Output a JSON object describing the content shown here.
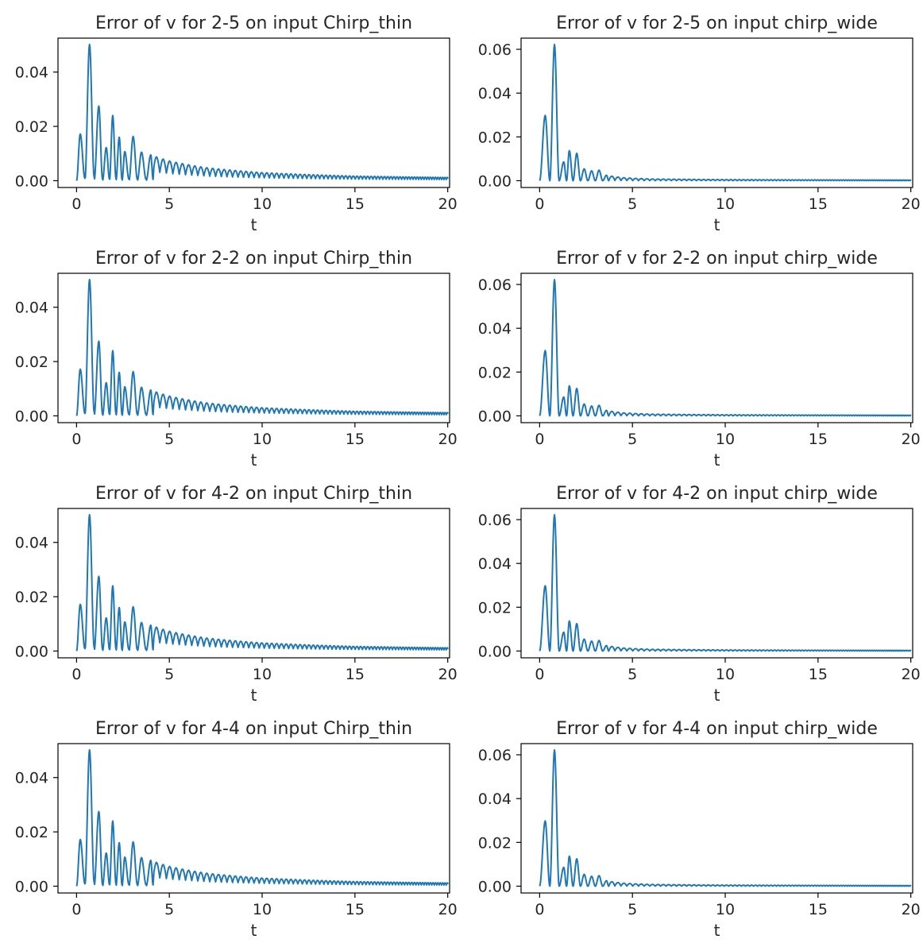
{
  "figure": {
    "line_color": "#1f77b4",
    "axis_color": "#000000",
    "text_color": "#262626",
    "background": "#ffffff"
  },
  "chart_data": [
    {
      "type": "line",
      "title": "Error of v for 2-5 on input Chirp_thin",
      "xlabel": "t",
      "ylabel": "",
      "xlim": [
        -1,
        20.1
      ],
      "ylim": [
        -0.0025,
        0.0525
      ],
      "xticks": [
        0,
        5,
        10,
        15,
        20
      ],
      "xtick_labels": [
        "0",
        "5",
        "10",
        "15",
        "20"
      ],
      "yticks": [
        0,
        0.02,
        0.04
      ],
      "ytick_labels": [
        "0.00",
        "0.02",
        "0.04"
      ],
      "grid": false,
      "signal": "thin",
      "peaks": [
        {
          "t": 0.2,
          "v": 0.0172
        },
        {
          "t": 0.7,
          "v": 0.0502
        },
        {
          "t": 1.2,
          "v": 0.0275
        },
        {
          "t": 1.6,
          "v": 0.0122
        },
        {
          "t": 1.95,
          "v": 0.024
        },
        {
          "t": 2.3,
          "v": 0.016
        },
        {
          "t": 2.6,
          "v": 0.0107
        },
        {
          "t": 3.05,
          "v": 0.0163
        },
        {
          "t": 3.5,
          "v": 0.0105
        },
        {
          "t": 4.0,
          "v": 0.0095
        },
        {
          "t": 5.0,
          "v": 0.0073
        },
        {
          "t": 7.0,
          "v": 0.0048
        },
        {
          "t": 10.0,
          "v": 0.003
        },
        {
          "t": 15.0,
          "v": 0.0017
        },
        {
          "t": 20.0,
          "v": 0.0012
        }
      ]
    },
    {
      "type": "line",
      "title": "Error of v for 2-5 on input chirp_wide",
      "xlabel": "t",
      "ylabel": "",
      "xlim": [
        -1,
        20.1
      ],
      "ylim": [
        -0.0031,
        0.0651
      ],
      "xticks": [
        0,
        5,
        10,
        15,
        20
      ],
      "xtick_labels": [
        "0",
        "5",
        "10",
        "15",
        "20"
      ],
      "yticks": [
        0,
        0.02,
        0.04,
        0.06
      ],
      "ytick_labels": [
        "0.00",
        "0.02",
        "0.04",
        "0.06"
      ],
      "grid": false,
      "signal": "wide",
      "peaks": [
        {
          "t": 0.3,
          "v": 0.0298
        },
        {
          "t": 0.8,
          "v": 0.0622
        },
        {
          "t": 1.3,
          "v": 0.0086
        },
        {
          "t": 1.6,
          "v": 0.0137
        },
        {
          "t": 2.0,
          "v": 0.0125
        },
        {
          "t": 2.4,
          "v": 0.0054
        },
        {
          "t": 2.8,
          "v": 0.0045
        },
        {
          "t": 3.2,
          "v": 0.0048
        },
        {
          "t": 3.6,
          "v": 0.0025
        },
        {
          "t": 4.5,
          "v": 0.0014
        },
        {
          "t": 6.0,
          "v": 0.0008
        },
        {
          "t": 10.0,
          "v": 0.0005
        },
        {
          "t": 20.0,
          "v": 0.0003
        }
      ]
    },
    {
      "type": "line",
      "title": "Error of v for 2-2 on input Chirp_thin",
      "xlabel": "t",
      "ylabel": "",
      "xlim": [
        -1,
        20.1
      ],
      "ylim": [
        -0.0025,
        0.0525
      ],
      "xticks": [
        0,
        5,
        10,
        15,
        20
      ],
      "xtick_labels": [
        "0",
        "5",
        "10",
        "15",
        "20"
      ],
      "yticks": [
        0,
        0.02,
        0.04
      ],
      "ytick_labels": [
        "0.00",
        "0.02",
        "0.04"
      ],
      "grid": false,
      "signal": "thin",
      "peaks": [
        {
          "t": 0.2,
          "v": 0.0172
        },
        {
          "t": 0.7,
          "v": 0.0502
        },
        {
          "t": 1.2,
          "v": 0.0275
        },
        {
          "t": 1.6,
          "v": 0.0122
        },
        {
          "t": 1.95,
          "v": 0.024
        },
        {
          "t": 2.3,
          "v": 0.016
        },
        {
          "t": 2.6,
          "v": 0.0107
        },
        {
          "t": 3.05,
          "v": 0.0163
        },
        {
          "t": 3.5,
          "v": 0.0105
        },
        {
          "t": 4.0,
          "v": 0.0095
        },
        {
          "t": 5.0,
          "v": 0.0073
        },
        {
          "t": 7.0,
          "v": 0.0048
        },
        {
          "t": 10.0,
          "v": 0.003
        },
        {
          "t": 15.0,
          "v": 0.0017
        },
        {
          "t": 20.0,
          "v": 0.0012
        }
      ]
    },
    {
      "type": "line",
      "title": "Error of v for 2-2 on input chirp_wide",
      "xlabel": "t",
      "ylabel": "",
      "xlim": [
        -1,
        20.1
      ],
      "ylim": [
        -0.0031,
        0.0651
      ],
      "xticks": [
        0,
        5,
        10,
        15,
        20
      ],
      "xtick_labels": [
        "0",
        "5",
        "10",
        "15",
        "20"
      ],
      "yticks": [
        0,
        0.02,
        0.04,
        0.06
      ],
      "ytick_labels": [
        "0.00",
        "0.02",
        "0.04",
        "0.06"
      ],
      "grid": false,
      "signal": "wide",
      "peaks": [
        {
          "t": 0.3,
          "v": 0.0298
        },
        {
          "t": 0.8,
          "v": 0.0622
        },
        {
          "t": 1.3,
          "v": 0.0086
        },
        {
          "t": 1.6,
          "v": 0.0137
        },
        {
          "t": 2.0,
          "v": 0.0125
        },
        {
          "t": 2.4,
          "v": 0.0054
        },
        {
          "t": 2.8,
          "v": 0.0045
        },
        {
          "t": 3.2,
          "v": 0.0048
        },
        {
          "t": 3.6,
          "v": 0.0025
        },
        {
          "t": 4.5,
          "v": 0.0014
        },
        {
          "t": 6.0,
          "v": 0.0008
        },
        {
          "t": 10.0,
          "v": 0.0005
        },
        {
          "t": 20.0,
          "v": 0.0003
        }
      ]
    },
    {
      "type": "line",
      "title": "Error of v for 4-2 on input Chirp_thin",
      "xlabel": "t",
      "ylabel": "",
      "xlim": [
        -1,
        20.1
      ],
      "ylim": [
        -0.0025,
        0.0525
      ],
      "xticks": [
        0,
        5,
        10,
        15,
        20
      ],
      "xtick_labels": [
        "0",
        "5",
        "10",
        "15",
        "20"
      ],
      "yticks": [
        0,
        0.02,
        0.04
      ],
      "ytick_labels": [
        "0.00",
        "0.02",
        "0.04"
      ],
      "grid": false,
      "signal": "thin",
      "peaks": [
        {
          "t": 0.2,
          "v": 0.0172
        },
        {
          "t": 0.7,
          "v": 0.0502
        },
        {
          "t": 1.2,
          "v": 0.0275
        },
        {
          "t": 1.6,
          "v": 0.0122
        },
        {
          "t": 1.95,
          "v": 0.024
        },
        {
          "t": 2.3,
          "v": 0.016
        },
        {
          "t": 2.6,
          "v": 0.0107
        },
        {
          "t": 3.05,
          "v": 0.0163
        },
        {
          "t": 3.5,
          "v": 0.0105
        },
        {
          "t": 4.0,
          "v": 0.0095
        },
        {
          "t": 5.0,
          "v": 0.0073
        },
        {
          "t": 7.0,
          "v": 0.0048
        },
        {
          "t": 10.0,
          "v": 0.003
        },
        {
          "t": 15.0,
          "v": 0.0017
        },
        {
          "t": 20.0,
          "v": 0.0012
        }
      ]
    },
    {
      "type": "line",
      "title": "Error of v for 4-2 on input chirp_wide",
      "xlabel": "t",
      "ylabel": "",
      "xlim": [
        -1,
        20.1
      ],
      "ylim": [
        -0.0031,
        0.0651
      ],
      "xticks": [
        0,
        5,
        10,
        15,
        20
      ],
      "xtick_labels": [
        "0",
        "5",
        "10",
        "15",
        "20"
      ],
      "yticks": [
        0,
        0.02,
        0.04,
        0.06
      ],
      "ytick_labels": [
        "0.00",
        "0.02",
        "0.04",
        "0.06"
      ],
      "grid": false,
      "signal": "wide",
      "peaks": [
        {
          "t": 0.3,
          "v": 0.0298
        },
        {
          "t": 0.8,
          "v": 0.0622
        },
        {
          "t": 1.3,
          "v": 0.0086
        },
        {
          "t": 1.6,
          "v": 0.0137
        },
        {
          "t": 2.0,
          "v": 0.0125
        },
        {
          "t": 2.4,
          "v": 0.0054
        },
        {
          "t": 2.8,
          "v": 0.0045
        },
        {
          "t": 3.2,
          "v": 0.0048
        },
        {
          "t": 3.6,
          "v": 0.0025
        },
        {
          "t": 4.5,
          "v": 0.0014
        },
        {
          "t": 6.0,
          "v": 0.0008
        },
        {
          "t": 10.0,
          "v": 0.0005
        },
        {
          "t": 20.0,
          "v": 0.0003
        }
      ]
    },
    {
      "type": "line",
      "title": "Error of v for 4-4 on input Chirp_thin",
      "xlabel": "t",
      "ylabel": "",
      "xlim": [
        -1,
        20.1
      ],
      "ylim": [
        -0.0025,
        0.0525
      ],
      "xticks": [
        0,
        5,
        10,
        15,
        20
      ],
      "xtick_labels": [
        "0",
        "5",
        "10",
        "15",
        "20"
      ],
      "yticks": [
        0,
        0.02,
        0.04
      ],
      "ytick_labels": [
        "0.00",
        "0.02",
        "0.04"
      ],
      "grid": false,
      "signal": "thin",
      "peaks": [
        {
          "t": 0.2,
          "v": 0.0172
        },
        {
          "t": 0.7,
          "v": 0.0502
        },
        {
          "t": 1.2,
          "v": 0.0275
        },
        {
          "t": 1.6,
          "v": 0.0122
        },
        {
          "t": 1.95,
          "v": 0.024
        },
        {
          "t": 2.3,
          "v": 0.016
        },
        {
          "t": 2.6,
          "v": 0.0107
        },
        {
          "t": 3.05,
          "v": 0.0163
        },
        {
          "t": 3.5,
          "v": 0.0105
        },
        {
          "t": 4.0,
          "v": 0.0095
        },
        {
          "t": 5.0,
          "v": 0.0073
        },
        {
          "t": 7.0,
          "v": 0.0048
        },
        {
          "t": 10.0,
          "v": 0.003
        },
        {
          "t": 15.0,
          "v": 0.0017
        },
        {
          "t": 20.0,
          "v": 0.0012
        }
      ]
    },
    {
      "type": "line",
      "title": "Error of v for 4-4 on input chirp_wide",
      "xlabel": "t",
      "ylabel": "",
      "xlim": [
        -1,
        20.1
      ],
      "ylim": [
        -0.0031,
        0.0651
      ],
      "xticks": [
        0,
        5,
        10,
        15,
        20
      ],
      "xtick_labels": [
        "0",
        "5",
        "10",
        "15",
        "20"
      ],
      "yticks": [
        0,
        0.02,
        0.04,
        0.06
      ],
      "ytick_labels": [
        "0.00",
        "0.02",
        "0.04",
        "0.06"
      ],
      "grid": false,
      "signal": "wide",
      "peaks": [
        {
          "t": 0.3,
          "v": 0.0298
        },
        {
          "t": 0.8,
          "v": 0.0622
        },
        {
          "t": 1.3,
          "v": 0.0086
        },
        {
          "t": 1.6,
          "v": 0.0137
        },
        {
          "t": 2.0,
          "v": 0.0125
        },
        {
          "t": 2.4,
          "v": 0.0054
        },
        {
          "t": 2.8,
          "v": 0.0045
        },
        {
          "t": 3.2,
          "v": 0.0048
        },
        {
          "t": 3.6,
          "v": 0.0025
        },
        {
          "t": 4.5,
          "v": 0.0014
        },
        {
          "t": 6.0,
          "v": 0.0008
        },
        {
          "t": 10.0,
          "v": 0.0005
        },
        {
          "t": 20.0,
          "v": 0.0003
        }
      ]
    }
  ]
}
